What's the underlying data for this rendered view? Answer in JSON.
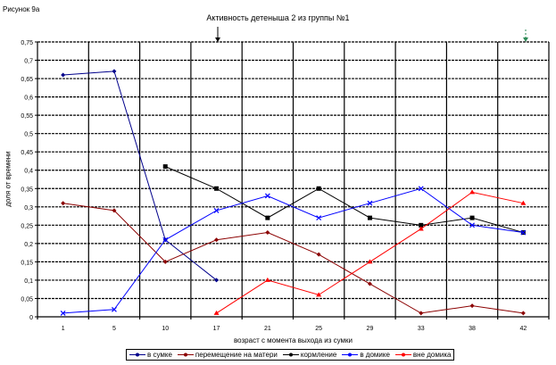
{
  "figure_label": "Рисунок 9а",
  "chart_data": {
    "type": "line",
    "title": "Активность детеныша 2 из группы №1",
    "xlabel": "возраст с момента выхода из сумки",
    "ylabel": "доля от времени",
    "categories": [
      "1",
      "5",
      "10",
      "17",
      "21",
      "25",
      "29",
      "33",
      "38",
      "42"
    ],
    "ylim": [
      0,
      0.75
    ],
    "yticks": [
      "0",
      "0,05",
      "0,1",
      "0,15",
      "0,2",
      "0,25",
      "0,3",
      "0,35",
      "0,4",
      "0,45",
      "0,5",
      "0,55",
      "0,6",
      "0,65",
      "0,7",
      "0,75"
    ],
    "grid": true,
    "legend_position": "bottom",
    "series": [
      {
        "name": "в сумке",
        "color": "#00008b",
        "marker": "diamond",
        "values": [
          0.66,
          0.67,
          0.21,
          0.1,
          null,
          null,
          null,
          null,
          null,
          null
        ]
      },
      {
        "name": "перемещение на матери",
        "color": "#8b0000",
        "marker": "diamond",
        "values": [
          0.31,
          0.29,
          0.15,
          0.21,
          0.23,
          0.17,
          0.09,
          0.01,
          0.03,
          0.01
        ]
      },
      {
        "name": "кормление",
        "color": "#000000",
        "marker": "square",
        "values": [
          null,
          null,
          0.41,
          0.35,
          0.27,
          0.35,
          0.27,
          0.25,
          0.27,
          0.23
        ]
      },
      {
        "name": "в домике",
        "color": "#0000ff",
        "marker": "x",
        "values": [
          0.01,
          0.02,
          0.21,
          0.29,
          0.33,
          0.27,
          0.31,
          0.35,
          0.25,
          0.23
        ]
      },
      {
        "name": "вне домика",
        "color": "#ff0000",
        "marker": "triangle",
        "values": [
          null,
          null,
          null,
          0.01,
          0.1,
          0.06,
          0.15,
          0.24,
          0.34,
          0.31
        ]
      }
    ]
  }
}
